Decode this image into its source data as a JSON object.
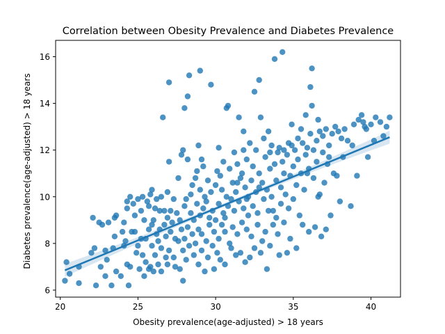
{
  "chart_data": {
    "type": "scatter",
    "title": "Correlation between Obesity Prevalence and Diabetes Prevalence",
    "xlabel": "Obesity prevalence(age-adjusted) > 18 years",
    "ylabel": "Diabetes prevalence(age-adjusted) > 18 years",
    "xlim": [
      19.7,
      41.9
    ],
    "ylim": [
      5.7,
      16.7
    ],
    "xticks": [
      20,
      25,
      30,
      35,
      40
    ],
    "yticks": [
      6,
      8,
      10,
      12,
      14,
      16
    ],
    "grid": false,
    "legend": "none",
    "point_color": "#1f77b4",
    "regression": {
      "x_start": 20.3,
      "y_start": 6.85,
      "x_end": 41.2,
      "y_end": 12.55,
      "ci_color": "#1f77b4"
    },
    "points": [
      [
        20.3,
        6.4
      ],
      [
        20.4,
        7.2
      ],
      [
        20.6,
        6.7
      ],
      [
        21.2,
        6.3
      ],
      [
        21.2,
        7.0
      ],
      [
        22.0,
        7.6
      ],
      [
        22.1,
        9.1
      ],
      [
        22.2,
        7.8
      ],
      [
        22.3,
        6.2
      ],
      [
        22.5,
        8.9
      ],
      [
        22.6,
        7.0
      ],
      [
        22.7,
        8.8
      ],
      [
        22.9,
        6.6
      ],
      [
        22.9,
        7.7
      ],
      [
        23.1,
        8.9
      ],
      [
        23.3,
        6.2
      ],
      [
        23.4,
        7.8
      ],
      [
        23.5,
        8.3
      ],
      [
        23.5,
        9.1
      ],
      [
        23.6,
        9.2
      ],
      [
        23.6,
        6.8
      ],
      [
        23.9,
        6.6
      ],
      [
        24.0,
        8.5
      ],
      [
        24.1,
        7.9
      ],
      [
        24.2,
        8.1
      ],
      [
        24.3,
        7.1
      ],
      [
        24.3,
        9.5
      ],
      [
        24.3,
        9.8
      ],
      [
        24.4,
        6.2
      ],
      [
        24.5,
        10.0
      ],
      [
        24.5,
        7.0
      ],
      [
        24.6,
        8.5
      ],
      [
        24.7,
        9.7
      ],
      [
        24.8,
        9.2
      ],
      [
        24.8,
        8.5
      ],
      [
        24.9,
        7.6
      ],
      [
        25.0,
        7.9
      ],
      [
        25.0,
        9.9
      ],
      [
        25.1,
        6.9
      ],
      [
        25.2,
        8.2
      ],
      [
        25.2,
        9.4
      ],
      [
        25.3,
        7.5
      ],
      [
        25.3,
        10.0
      ],
      [
        25.4,
        6.6
      ],
      [
        25.4,
        9.0
      ],
      [
        25.5,
        7.2
      ],
      [
        25.5,
        8.2
      ],
      [
        25.6,
        9.8
      ],
      [
        25.7,
        6.9
      ],
      [
        25.7,
        8.6
      ],
      [
        25.7,
        9.6
      ],
      [
        25.8,
        7.0
      ],
      [
        25.8,
        10.1
      ],
      [
        25.9,
        7.9
      ],
      [
        25.9,
        8.8
      ],
      [
        25.9,
        10.3
      ],
      [
        26.0,
        6.8
      ],
      [
        26.0,
        9.0
      ],
      [
        26.1,
        7.5
      ],
      [
        26.1,
        9.5
      ],
      [
        26.2,
        8.4
      ],
      [
        26.2,
        9.9
      ],
      [
        26.3,
        7.1
      ],
      [
        26.3,
        8.1
      ],
      [
        26.4,
        8.6
      ],
      [
        26.4,
        9.4
      ],
      [
        26.5,
        6.8
      ],
      [
        26.5,
        7.8
      ],
      [
        26.5,
        10.0
      ],
      [
        26.6,
        13.4
      ],
      [
        26.7,
        8.8
      ],
      [
        26.7,
        9.4
      ],
      [
        26.8,
        7.4
      ],
      [
        26.8,
        8.3
      ],
      [
        26.9,
        9.1
      ],
      [
        26.9,
        10.2
      ],
      [
        27.0,
        7.7
      ],
      [
        27.0,
        14.9
      ],
      [
        27.0,
        11.5
      ],
      [
        27.1,
        8.5
      ],
      [
        27.1,
        9.4
      ],
      [
        27.2,
        8.9
      ],
      [
        27.3,
        7.4
      ],
      [
        27.3,
        9.9
      ],
      [
        27.4,
        8.2
      ],
      [
        27.4,
        7.0
      ],
      [
        27.5,
        9.3
      ],
      [
        27.6,
        8.1
      ],
      [
        27.6,
        10.8
      ],
      [
        27.7,
        6.9
      ],
      [
        27.7,
        9.0
      ],
      [
        27.8,
        8.6
      ],
      [
        27.8,
        11.8
      ],
      [
        27.9,
        12.0
      ],
      [
        27.9,
        6.4
      ],
      [
        27.9,
        7.7
      ],
      [
        28.0,
        13.8
      ],
      [
        28.0,
        8.2
      ],
      [
        28.0,
        9.6
      ],
      [
        28.1,
        7.3
      ],
      [
        28.1,
        9.9
      ],
      [
        28.2,
        14.3
      ],
      [
        28.2,
        11.6
      ],
      [
        28.2,
        8.7
      ],
      [
        28.3,
        15.2
      ],
      [
        28.3,
        7.9
      ],
      [
        28.4,
        9.3
      ],
      [
        28.4,
        10.1
      ],
      [
        28.5,
        8.4
      ],
      [
        28.5,
        10.5
      ],
      [
        28.6,
        7.5
      ],
      [
        28.6,
        9.0
      ],
      [
        28.7,
        10.8
      ],
      [
        28.7,
        8.0
      ],
      [
        28.8,
        9.7
      ],
      [
        28.8,
        11.1
      ],
      [
        28.9,
        7.1
      ],
      [
        28.9,
        8.6
      ],
      [
        29.0,
        15.4
      ],
      [
        29.0,
        10.3
      ],
      [
        29.0,
        9.2
      ],
      [
        29.1,
        7.7
      ],
      [
        29.1,
        8.4
      ],
      [
        29.2,
        11.3
      ],
      [
        29.2,
        9.5
      ],
      [
        29.3,
        6.8
      ],
      [
        29.3,
        10.0
      ],
      [
        29.4,
        8.1
      ],
      [
        29.4,
        9.8
      ],
      [
        29.5,
        10.7
      ],
      [
        29.5,
        7.4
      ],
      [
        29.6,
        9.1
      ],
      [
        29.6,
        8.8
      ],
      [
        29.7,
        14.8
      ],
      [
        29.7,
        10.2
      ],
      [
        29.8,
        7.9
      ],
      [
        29.8,
        9.4
      ],
      [
        29.9,
        6.9
      ],
      [
        29.9,
        8.5
      ],
      [
        30.0,
        10.5
      ],
      [
        30.0,
        9.0
      ],
      [
        30.1,
        7.6
      ],
      [
        30.1,
        11.1
      ],
      [
        30.2,
        8.2
      ],
      [
        30.2,
        9.7
      ],
      [
        30.3,
        10.9
      ],
      [
        30.3,
        7.3
      ],
      [
        30.4,
        8.8
      ],
      [
        30.4,
        10.3
      ],
      [
        30.5,
        9.3
      ],
      [
        30.5,
        11.5
      ],
      [
        30.6,
        7.1
      ],
      [
        30.6,
        8.5
      ],
      [
        30.7,
        13.8
      ],
      [
        30.7,
        10.0
      ],
      [
        30.8,
        9.6
      ],
      [
        30.8,
        13.9
      ],
      [
        30.9,
        8.0
      ],
      [
        30.9,
        11.2
      ],
      [
        31.0,
        7.8
      ],
      [
        31.0,
        9.9
      ],
      [
        31.1,
        10.6
      ],
      [
        31.1,
        8.7
      ],
      [
        31.2,
        11.9
      ],
      [
        31.2,
        9.4
      ],
      [
        31.3,
        7.5
      ],
      [
        31.3,
        10.2
      ],
      [
        31.4,
        8.4
      ],
      [
        31.4,
        11.4
      ],
      [
        31.5,
        13.4
      ],
      [
        31.5,
        9.8
      ],
      [
        31.6,
        7.6
      ],
      [
        31.6,
        10.8
      ],
      [
        31.7,
        8.9
      ],
      [
        31.7,
        11.0
      ],
      [
        31.8,
        9.5
      ],
      [
        31.8,
        12.0
      ],
      [
        31.9,
        7.2
      ],
      [
        31.9,
        10.4
      ],
      [
        32.0,
        8.6
      ],
      [
        32.0,
        11.6
      ],
      [
        32.1,
        9.2
      ],
      [
        32.1,
        10.0
      ],
      [
        32.2,
        7.4
      ],
      [
        32.2,
        12.3
      ],
      [
        32.3,
        8.3
      ],
      [
        32.3,
        10.7
      ],
      [
        32.4,
        9.6
      ],
      [
        32.4,
        11.3
      ],
      [
        32.5,
        14.5
      ],
      [
        32.5,
        7.8
      ],
      [
        32.6,
        10.2
      ],
      [
        32.6,
        12.0
      ],
      [
        32.7,
        8.8
      ],
      [
        32.7,
        9.3
      ],
      [
        32.8,
        15.0
      ],
      [
        32.8,
        11.0
      ],
      [
        32.9,
        7.6
      ],
      [
        32.9,
        13.4
      ],
      [
        33.0,
        10.6
      ],
      [
        33.0,
        8.1
      ],
      [
        33.1,
        12.5
      ],
      [
        33.1,
        9.9
      ],
      [
        33.2,
        11.7
      ],
      [
        33.2,
        8.5
      ],
      [
        33.3,
        6.9
      ],
      [
        33.3,
        10.3
      ],
      [
        33.4,
        12.8
      ],
      [
        33.4,
        9.4
      ],
      [
        33.5,
        11.2
      ],
      [
        33.5,
        7.9
      ],
      [
        33.6,
        10.0
      ],
      [
        33.6,
        12.2
      ],
      [
        33.7,
        8.8
      ],
      [
        33.8,
        15.9
      ],
      [
        33.8,
        11.4
      ],
      [
        33.9,
        9.1
      ],
      [
        33.9,
        10.7
      ],
      [
        34.0,
        8.4
      ],
      [
        34.0,
        11.9
      ],
      [
        34.1,
        7.5
      ],
      [
        34.1,
        12.1
      ],
      [
        34.2,
        9.7
      ],
      [
        34.2,
        10.4
      ],
      [
        34.3,
        16.2
      ],
      [
        34.3,
        11.5
      ],
      [
        34.4,
        8.9
      ],
      [
        34.4,
        12.0
      ],
      [
        34.5,
        10.1
      ],
      [
        34.6,
        7.6
      ],
      [
        34.6,
        11.8
      ],
      [
        34.7,
        9.5
      ],
      [
        34.7,
        12.3
      ],
      [
        34.8,
        8.2
      ],
      [
        34.8,
        10.9
      ],
      [
        34.9,
        13.1
      ],
      [
        35.0,
        9.9
      ],
      [
        35.0,
        11.3
      ],
      [
        35.1,
        12.0
      ],
      [
        35.2,
        7.8
      ],
      [
        35.2,
        10.5
      ],
      [
        35.3,
        11.6
      ],
      [
        35.3,
        12.5
      ],
      [
        35.4,
        9.2
      ],
      [
        35.5,
        12.9
      ],
      [
        35.5,
        11.0
      ],
      [
        35.6,
        8.8
      ],
      [
        35.6,
        12.3
      ],
      [
        35.7,
        10.3
      ],
      [
        35.8,
        13.5
      ],
      [
        35.8,
        11.8
      ],
      [
        35.9,
        12.1
      ],
      [
        36.0,
        8.5
      ],
      [
        36.0,
        11.2
      ],
      [
        36.1,
        12.7
      ],
      [
        36.1,
        14.7
      ],
      [
        36.2,
        13.9
      ],
      [
        36.2,
        15.5
      ],
      [
        36.3,
        10.8
      ],
      [
        36.3,
        12.0
      ],
      [
        36.4,
        8.7
      ],
      [
        36.5,
        12.4
      ],
      [
        36.5,
        11.5
      ],
      [
        36.6,
        13.3
      ],
      [
        36.7,
        10.1
      ],
      [
        36.7,
        12.8
      ],
      [
        36.8,
        8.3
      ],
      [
        36.9,
        11.9
      ],
      [
        36.9,
        12.6
      ],
      [
        37.0,
        10.6
      ],
      [
        37.1,
        12.9
      ],
      [
        37.1,
        8.6
      ],
      [
        37.2,
        11.4
      ],
      [
        37.3,
        12.2
      ],
      [
        37.4,
        9.2
      ],
      [
        37.5,
        12.7
      ],
      [
        37.6,
        11.0
      ],
      [
        37.7,
        13.0
      ],
      [
        37.8,
        10.9
      ],
      [
        37.9,
        12.8
      ],
      [
        38.0,
        9.8
      ],
      [
        38.1,
        12.5
      ],
      [
        38.2,
        11.7
      ],
      [
        38.3,
        12.9
      ],
      [
        38.5,
        12.4
      ],
      [
        38.7,
        9.6
      ],
      [
        38.9,
        13.1
      ],
      [
        39.1,
        10.9
      ],
      [
        39.2,
        13.3
      ],
      [
        39.4,
        13.5
      ],
      [
        39.5,
        13.2
      ],
      [
        39.6,
        13.0
      ],
      [
        39.8,
        11.7
      ],
      [
        40.0,
        13.1
      ],
      [
        40.2,
        12.4
      ],
      [
        40.3,
        13.4
      ],
      [
        40.6,
        13.2
      ],
      [
        40.8,
        12.6
      ],
      [
        41.0,
        13.0
      ],
      [
        41.2,
        13.4
      ],
      [
        23.0,
        7.3
      ],
      [
        24.1,
        8.9
      ],
      [
        26.9,
        7.1
      ],
      [
        28.9,
        12.2
      ],
      [
        30.6,
        9.1
      ],
      [
        31.4,
        10.6
      ],
      [
        32.0,
        9.9
      ],
      [
        32.8,
        10.4
      ],
      [
        33.7,
        9.4
      ],
      [
        34.4,
        11.0
      ],
      [
        35.9,
        11.0
      ],
      [
        36.6,
        10.0
      ],
      [
        37.3,
        11.7
      ],
      [
        38.8,
        12.2
      ],
      [
        39.7,
        12.9
      ],
      [
        30.2,
        12.1
      ],
      [
        31.8,
        12.8
      ],
      [
        29.1,
        11.6
      ],
      [
        33.5,
        11.9
      ],
      [
        34.9,
        12.2
      ]
    ]
  }
}
